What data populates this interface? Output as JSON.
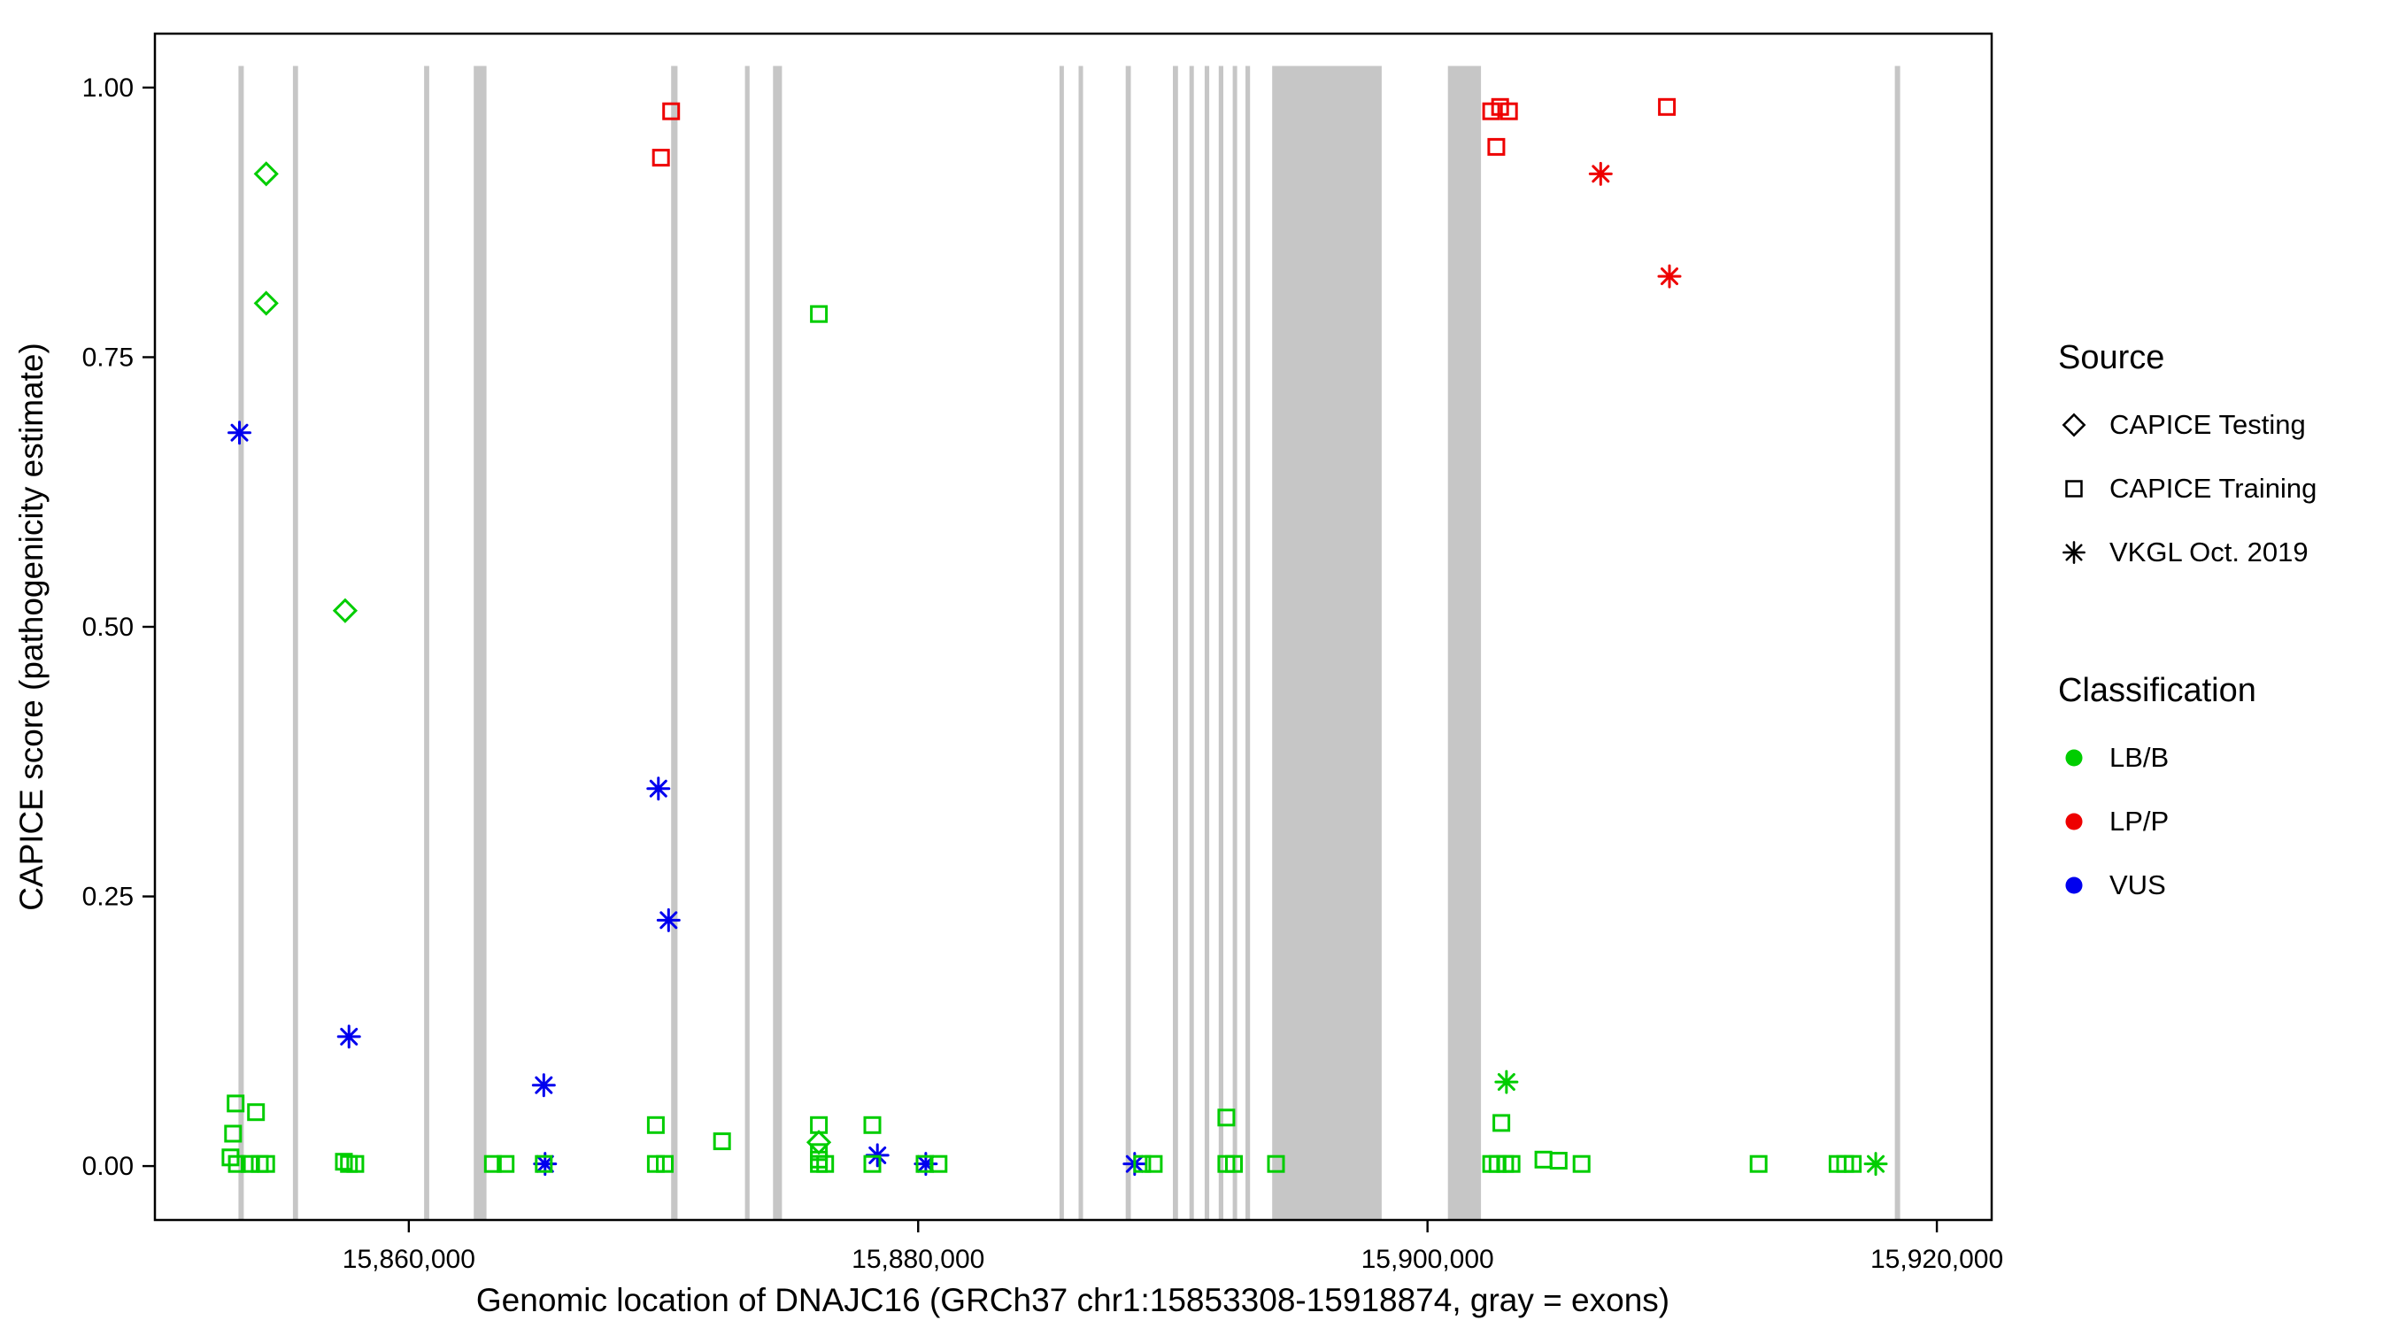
{
  "chart_data": {
    "type": "scatter",
    "title": "",
    "xlabel": "Genomic location of DNAJC16 (GRCh37 chr1:15853308-15918874, gray = exons)",
    "ylabel": "CAPICE score (pathogenicity estimate)",
    "x_domain": [
      15850030,
      15922152
    ],
    "y_domain": [
      -0.05,
      1.05
    ],
    "grid": false,
    "legend_position": "right",
    "x_ticks": [
      {
        "value": 15860000,
        "label": "15,860,000"
      },
      {
        "value": 15880000,
        "label": "15,880,000"
      },
      {
        "value": 15900000,
        "label": "15,900,000"
      },
      {
        "value": 15920000,
        "label": "15,920,000"
      }
    ],
    "y_ticks": [
      {
        "value": 0.0,
        "label": "0.00"
      },
      {
        "value": 0.25,
        "label": "0.25"
      },
      {
        "value": 0.5,
        "label": "0.50"
      },
      {
        "value": 0.75,
        "label": "0.75"
      },
      {
        "value": 1.0,
        "label": "1.00"
      }
    ],
    "exon_color": "#c6c6c6",
    "exons": [
      [
        15853310,
        15853520
      ],
      [
        15855450,
        15855650
      ],
      [
        15860600,
        15860800
      ],
      [
        15862550,
        15863050
      ],
      [
        15870300,
        15870550
      ],
      [
        15873200,
        15873380
      ],
      [
        15874300,
        15874650
      ],
      [
        15885550,
        15885720
      ],
      [
        15886300,
        15886470
      ],
      [
        15888150,
        15888350
      ],
      [
        15890000,
        15890200
      ],
      [
        15890650,
        15890820
      ],
      [
        15891250,
        15891430
      ],
      [
        15891800,
        15891980
      ],
      [
        15892350,
        15892520
      ],
      [
        15892850,
        15893030
      ],
      [
        15893900,
        15898200
      ],
      [
        15900800,
        15902100
      ],
      [
        15918350,
        15918560
      ]
    ],
    "classification_colors": {
      "LB/B": "#00cd00",
      "LP/P": "#ee0000",
      "VUS": "#0000ee"
    },
    "source_shapes": {
      "CAPICE Testing": "diamond",
      "CAPICE Training": "square",
      "VKGL Oct. 2019": "asterisk"
    },
    "points": [
      {
        "x": 15854400,
        "y": 0.92,
        "s": "CAPICE Testing",
        "c": "LB/B"
      },
      {
        "x": 15854400,
        "y": 0.8,
        "s": "CAPICE Testing",
        "c": "LB/B"
      },
      {
        "x": 15857500,
        "y": 0.515,
        "s": "CAPICE Testing",
        "c": "LB/B"
      },
      {
        "x": 15876100,
        "y": 0.022,
        "s": "CAPICE Testing",
        "c": "LB/B"
      },
      {
        "x": 15870300,
        "y": 0.978,
        "s": "CAPICE Training",
        "c": "LP/P"
      },
      {
        "x": 15869900,
        "y": 0.935,
        "s": "CAPICE Training",
        "c": "LP/P"
      },
      {
        "x": 15902500,
        "y": 0.978,
        "s": "CAPICE Training",
        "c": "LP/P"
      },
      {
        "x": 15902850,
        "y": 0.982,
        "s": "CAPICE Training",
        "c": "LP/P"
      },
      {
        "x": 15903200,
        "y": 0.978,
        "s": "CAPICE Training",
        "c": "LP/P"
      },
      {
        "x": 15902700,
        "y": 0.945,
        "s": "CAPICE Training",
        "c": "LP/P"
      },
      {
        "x": 15909400,
        "y": 0.982,
        "s": "CAPICE Training",
        "c": "LP/P"
      },
      {
        "x": 15906800,
        "y": 0.92,
        "s": "VKGL Oct. 2019",
        "c": "LP/P"
      },
      {
        "x": 15909500,
        "y": 0.825,
        "s": "VKGL Oct. 2019",
        "c": "LP/P"
      },
      {
        "x": 15853350,
        "y": 0.68,
        "s": "VKGL Oct. 2019",
        "c": "VUS"
      },
      {
        "x": 15857650,
        "y": 0.12,
        "s": "VKGL Oct. 2019",
        "c": "VUS"
      },
      {
        "x": 15865300,
        "y": 0.075,
        "s": "VKGL Oct. 2019",
        "c": "VUS"
      },
      {
        "x": 15869800,
        "y": 0.35,
        "s": "VKGL Oct. 2019",
        "c": "VUS"
      },
      {
        "x": 15870200,
        "y": 0.228,
        "s": "VKGL Oct. 2019",
        "c": "VUS"
      },
      {
        "x": 15865350,
        "y": 0.002,
        "s": "VKGL Oct. 2019",
        "c": "VUS"
      },
      {
        "x": 15878400,
        "y": 0.01,
        "s": "VKGL Oct. 2019",
        "c": "VUS"
      },
      {
        "x": 15880300,
        "y": 0.002,
        "s": "VKGL Oct. 2019",
        "c": "VUS"
      },
      {
        "x": 15888500,
        "y": 0.002,
        "s": "VKGL Oct. 2019",
        "c": "VUS"
      },
      {
        "x": 15903100,
        "y": 0.078,
        "s": "VKGL Oct. 2019",
        "c": "LB/B"
      },
      {
        "x": 15917600,
        "y": 0.002,
        "s": "VKGL Oct. 2019",
        "c": "LB/B"
      },
      {
        "x": 15876100,
        "y": 0.79,
        "s": "CAPICE Training",
        "c": "LB/B"
      },
      {
        "x": 15853200,
        "y": 0.058,
        "s": "CAPICE Training",
        "c": "LB/B"
      },
      {
        "x": 15854000,
        "y": 0.05,
        "s": "CAPICE Training",
        "c": "LB/B"
      },
      {
        "x": 15853100,
        "y": 0.03,
        "s": "CAPICE Training",
        "c": "LB/B"
      },
      {
        "x": 15853000,
        "y": 0.008,
        "s": "CAPICE Training",
        "c": "LB/B"
      },
      {
        "x": 15853250,
        "y": 0.002,
        "s": "CAPICE Training",
        "c": "LB/B"
      },
      {
        "x": 15853750,
        "y": 0.002,
        "s": "CAPICE Training",
        "c": "LB/B"
      },
      {
        "x": 15854150,
        "y": 0.002,
        "s": "CAPICE Training",
        "c": "LB/B"
      },
      {
        "x": 15854400,
        "y": 0.002,
        "s": "CAPICE Training",
        "c": "LB/B"
      },
      {
        "x": 15857450,
        "y": 0.004,
        "s": "CAPICE Training",
        "c": "LB/B"
      },
      {
        "x": 15857650,
        "y": 0.002,
        "s": "CAPICE Training",
        "c": "LB/B"
      },
      {
        "x": 15857900,
        "y": 0.002,
        "s": "CAPICE Training",
        "c": "LB/B"
      },
      {
        "x": 15863300,
        "y": 0.002,
        "s": "CAPICE Training",
        "c": "LB/B"
      },
      {
        "x": 15863800,
        "y": 0.002,
        "s": "CAPICE Training",
        "c": "LB/B"
      },
      {
        "x": 15865300,
        "y": 0.002,
        "s": "CAPICE Training",
        "c": "LB/B"
      },
      {
        "x": 15869700,
        "y": 0.038,
        "s": "CAPICE Training",
        "c": "LB/B"
      },
      {
        "x": 15869700,
        "y": 0.002,
        "s": "CAPICE Training",
        "c": "LB/B"
      },
      {
        "x": 15870050,
        "y": 0.002,
        "s": "CAPICE Training",
        "c": "LB/B"
      },
      {
        "x": 15872300,
        "y": 0.023,
        "s": "CAPICE Training",
        "c": "LB/B"
      },
      {
        "x": 15876100,
        "y": 0.038,
        "s": "CAPICE Training",
        "c": "LB/B"
      },
      {
        "x": 15876100,
        "y": 0.013,
        "s": "CAPICE Training",
        "c": "LB/B"
      },
      {
        "x": 15876100,
        "y": 0.006,
        "s": "CAPICE Training",
        "c": "LB/B"
      },
      {
        "x": 15876100,
        "y": 0.002,
        "s": "CAPICE Training",
        "c": "LB/B"
      },
      {
        "x": 15876350,
        "y": 0.002,
        "s": "CAPICE Training",
        "c": "LB/B"
      },
      {
        "x": 15878200,
        "y": 0.038,
        "s": "CAPICE Training",
        "c": "LB/B"
      },
      {
        "x": 15878200,
        "y": 0.002,
        "s": "CAPICE Training",
        "c": "LB/B"
      },
      {
        "x": 15880250,
        "y": 0.002,
        "s": "CAPICE Training",
        "c": "LB/B"
      },
      {
        "x": 15880800,
        "y": 0.002,
        "s": "CAPICE Training",
        "c": "LB/B"
      },
      {
        "x": 15888800,
        "y": 0.002,
        "s": "CAPICE Training",
        "c": "LB/B"
      },
      {
        "x": 15889250,
        "y": 0.002,
        "s": "CAPICE Training",
        "c": "LB/B"
      },
      {
        "x": 15892100,
        "y": 0.045,
        "s": "CAPICE Training",
        "c": "LB/B"
      },
      {
        "x": 15892100,
        "y": 0.002,
        "s": "CAPICE Training",
        "c": "LB/B"
      },
      {
        "x": 15892400,
        "y": 0.002,
        "s": "CAPICE Training",
        "c": "LB/B"
      },
      {
        "x": 15894050,
        "y": 0.002,
        "s": "CAPICE Training",
        "c": "LB/B"
      },
      {
        "x": 15902900,
        "y": 0.04,
        "s": "CAPICE Training",
        "c": "LB/B"
      },
      {
        "x": 15902500,
        "y": 0.002,
        "s": "CAPICE Training",
        "c": "LB/B"
      },
      {
        "x": 15902750,
        "y": 0.002,
        "s": "CAPICE Training",
        "c": "LB/B"
      },
      {
        "x": 15903050,
        "y": 0.002,
        "s": "CAPICE Training",
        "c": "LB/B"
      },
      {
        "x": 15903300,
        "y": 0.002,
        "s": "CAPICE Training",
        "c": "LB/B"
      },
      {
        "x": 15904550,
        "y": 0.006,
        "s": "CAPICE Training",
        "c": "LB/B"
      },
      {
        "x": 15905150,
        "y": 0.005,
        "s": "CAPICE Training",
        "c": "LB/B"
      },
      {
        "x": 15906050,
        "y": 0.002,
        "s": "CAPICE Training",
        "c": "LB/B"
      },
      {
        "x": 15913000,
        "y": 0.002,
        "s": "CAPICE Training",
        "c": "LB/B"
      },
      {
        "x": 15916100,
        "y": 0.002,
        "s": "CAPICE Training",
        "c": "LB/B"
      },
      {
        "x": 15916400,
        "y": 0.002,
        "s": "CAPICE Training",
        "c": "LB/B"
      },
      {
        "x": 15916700,
        "y": 0.002,
        "s": "CAPICE Training",
        "c": "LB/B"
      }
    ]
  },
  "legend": {
    "source": {
      "title": "Source",
      "items": [
        {
          "label": "CAPICE Testing",
          "shape": "diamond"
        },
        {
          "label": "CAPICE Training",
          "shape": "square"
        },
        {
          "label": "VKGL Oct. 2019",
          "shape": "asterisk"
        }
      ]
    },
    "classification": {
      "title": "Classification",
      "items": [
        {
          "label": "LB/B",
          "color": "#00cd00"
        },
        {
          "label": "LP/P",
          "color": "#ee0000"
        },
        {
          "label": "VUS",
          "color": "#0000ee"
        }
      ]
    }
  }
}
